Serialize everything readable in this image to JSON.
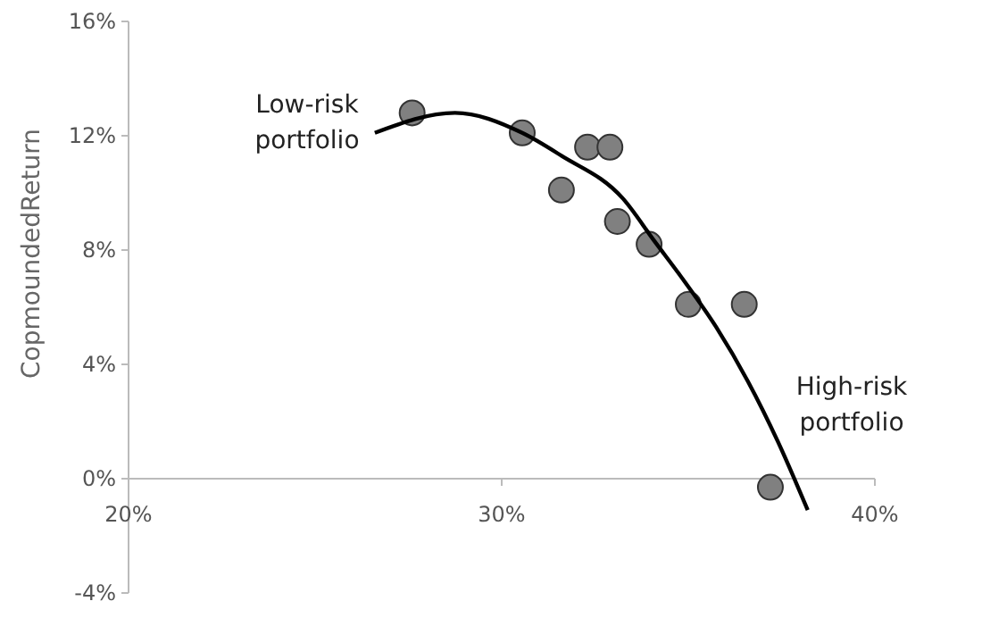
{
  "chart_data": {
    "type": "scatter",
    "ylabel": "CopmoundedReturn",
    "xlim": [
      20,
      40
    ],
    "ylim": [
      -4,
      16
    ],
    "xticks": [
      {
        "value": 20,
        "label": "20%"
      },
      {
        "value": 30,
        "label": "30%"
      },
      {
        "value": 40,
        "label": "40%"
      }
    ],
    "yticks": [
      {
        "value": -4,
        "label": "-4%"
      },
      {
        "value": 0,
        "label": "0%"
      },
      {
        "value": 4,
        "label": "4%"
      },
      {
        "value": 8,
        "label": "8%"
      },
      {
        "value": 12,
        "label": "12%"
      },
      {
        "value": 16,
        "label": "16%"
      }
    ],
    "grid": false,
    "series": [
      {
        "type": "scatter",
        "marker": "circle",
        "color": "#808080",
        "x": [
          27.6,
          30.55,
          31.6,
          32.3,
          32.9,
          33.1,
          33.95,
          35.0,
          36.5,
          37.2
        ],
        "values": [
          12.8,
          12.1,
          10.1,
          11.6,
          11.6,
          9.0,
          8.2,
          6.1,
          6.1,
          -0.3
        ]
      },
      {
        "type": "line",
        "color": "#000000",
        "line_style": "solid",
        "x": [
          26.6,
          28.75,
          30.55,
          31.6,
          33.25,
          34.1,
          34.9,
          35.75,
          36.6,
          37.4,
          38.2
        ],
        "values": [
          12.1,
          12.8,
          12.1,
          11.3,
          9.8,
          8.3,
          6.9,
          5.3,
          3.4,
          1.3,
          -1.1
        ]
      }
    ],
    "annotations": [
      "Low-risk\nportfolio",
      "High-risk\nportfolio"
    ]
  }
}
